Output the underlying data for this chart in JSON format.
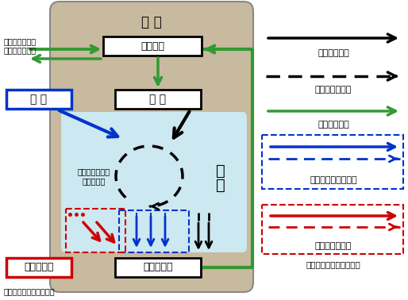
{
  "bg_color": "#c8ba9e",
  "inner_bg_color": "#cce8f0",
  "black": "#000000",
  "blue": "#0033cc",
  "red": "#cc0000",
  "green": "#339933",
  "gray_edge": "#888888",
  "label_kokunai": "国 内",
  "label_fuka": "付加価値",
  "label_gaijyu": "外 需",
  "label_naijyu": "内 需",
  "label_sangyo_line1": "産",
  "label_sangyo_line2": "業",
  "label_sangyo_loop": "産業連関による\n波及の循環",
  "label_kokugai": "国外流出額",
  "label_kokuchi": "国内生産額",
  "legend_chokusetsu": "直接の取引額",
  "legend_kansetsu": "間接の波及効果",
  "legend_sangyo_ren": "産業連関以外",
  "legend_gaijyu_yudo": "「外需」による誘発",
  "legend_yunyu": "輸入による流出",
  "legend_shushi": "収支＝誘発マイナス流出",
  "label_trade": "「貿易以外」の\nお金のやり取り",
  "source": "資料：経済産業省作成。"
}
